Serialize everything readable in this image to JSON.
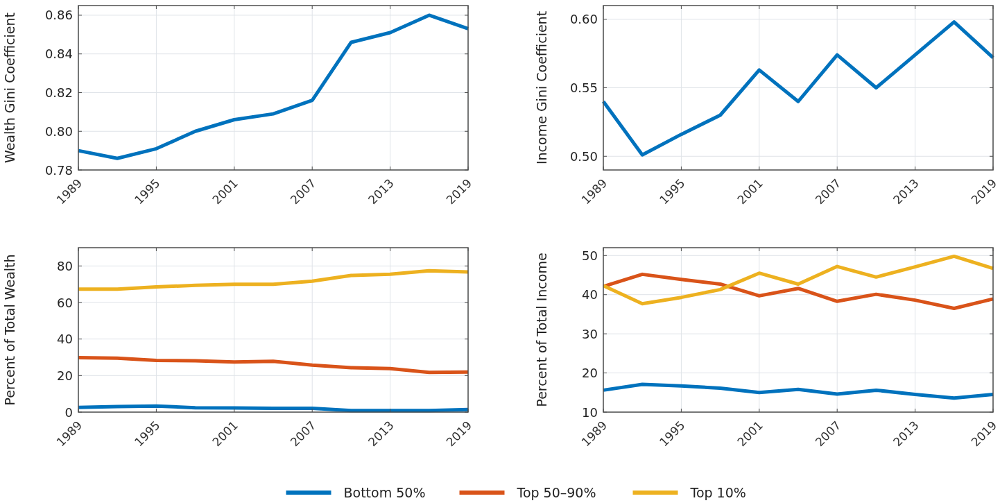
{
  "chart_data": [
    {
      "type": "line",
      "ylabel": "Wealth Gini Coefficient",
      "x": [
        1989,
        1992,
        1995,
        1998,
        2001,
        2004,
        2007,
        2010,
        2013,
        2016,
        2019
      ],
      "xlim": [
        1989,
        2019
      ],
      "xticks": [
        1989,
        1995,
        2001,
        2007,
        2013,
        2019
      ],
      "ylim": [
        0.78,
        0.865
      ],
      "yticks": [
        0.78,
        {
          "value": 0.8,
          "label": "0.80"
        },
        0.82,
        0.84,
        0.86
      ],
      "grid": true,
      "series": [
        {
          "color": "#0072bd",
          "values": [
            0.79,
            0.786,
            0.791,
            0.8,
            0.806,
            0.809,
            0.816,
            0.846,
            0.851,
            0.86,
            0.853
          ]
        }
      ]
    },
    {
      "type": "line",
      "ylabel": "Income Gini Coefficient",
      "x": [
        1989,
        1992,
        1995,
        1998,
        2001,
        2004,
        2007,
        2010,
        2013,
        2016,
        2019
      ],
      "xlim": [
        1989,
        2019
      ],
      "xticks": [
        1989,
        1995,
        2001,
        2007,
        2013,
        2019
      ],
      "ylim": [
        0.49,
        0.61
      ],
      "yticks": [
        {
          "value": 0.5,
          "label": "0.50"
        },
        0.55,
        {
          "value": 0.6,
          "label": "0.60"
        }
      ],
      "grid": true,
      "series": [
        {
          "color": "#0072bd",
          "values": [
            0.54,
            0.501,
            0.516,
            0.53,
            0.563,
            0.54,
            0.574,
            0.55,
            0.574,
            0.598,
            0.572
          ]
        }
      ]
    },
    {
      "type": "line",
      "ylabel": "Percent of Total Wealth",
      "x": [
        1989,
        1992,
        1995,
        1998,
        2001,
        2004,
        2007,
        2010,
        2013,
        2016,
        2019
      ],
      "xlim": [
        1989,
        2019
      ],
      "xticks": [
        1989,
        1995,
        2001,
        2007,
        2013,
        2019
      ],
      "ylim": [
        0,
        90
      ],
      "yticks": [
        0,
        20,
        40,
        60,
        80
      ],
      "grid": true,
      "legend": "bottom",
      "series": [
        {
          "name": "Bottom 50%",
          "color": "#0072bd",
          "values": [
            2.6,
            3.0,
            3.3,
            2.4,
            2.3,
            2.1,
            2.1,
            0.9,
            0.9,
            0.9,
            1.4
          ]
        },
        {
          "name": "Top 50–90%",
          "color": "#d95319",
          "values": [
            29.8,
            29.5,
            28.3,
            28.1,
            27.4,
            27.8,
            25.7,
            24.3,
            23.8,
            21.7,
            21.9
          ]
        },
        {
          "name": "Top 10%",
          "color": "#edb120",
          "values": [
            67.3,
            67.3,
            68.5,
            69.4,
            70.0,
            70.0,
            71.7,
            74.8,
            75.5,
            77.4,
            76.7
          ]
        }
      ]
    },
    {
      "type": "line",
      "ylabel": "Percent of Total Income",
      "x": [
        1989,
        1992,
        1995,
        1998,
        2001,
        2004,
        2007,
        2010,
        2013,
        2016,
        2019
      ],
      "xlim": [
        1989,
        2019
      ],
      "xticks": [
        1989,
        1995,
        2001,
        2007,
        2013,
        2019
      ],
      "ylim": [
        10,
        52
      ],
      "yticks": [
        10,
        20,
        30,
        40,
        50
      ],
      "grid": true,
      "series": [
        {
          "color": "#0072bd",
          "values": [
            15.6,
            17.1,
            16.7,
            16.1,
            15.0,
            15.8,
            14.6,
            15.6,
            14.5,
            13.6,
            14.5
          ]
        },
        {
          "color": "#d95319",
          "values": [
            42.1,
            45.2,
            43.9,
            42.7,
            39.7,
            41.6,
            38.3,
            40.1,
            38.6,
            36.5,
            38.9
          ]
        },
        {
          "color": "#edb120",
          "values": [
            42.3,
            37.7,
            39.3,
            41.3,
            45.5,
            42.7,
            47.2,
            44.5,
            47.1,
            49.8,
            46.7
          ]
        }
      ]
    }
  ]
}
